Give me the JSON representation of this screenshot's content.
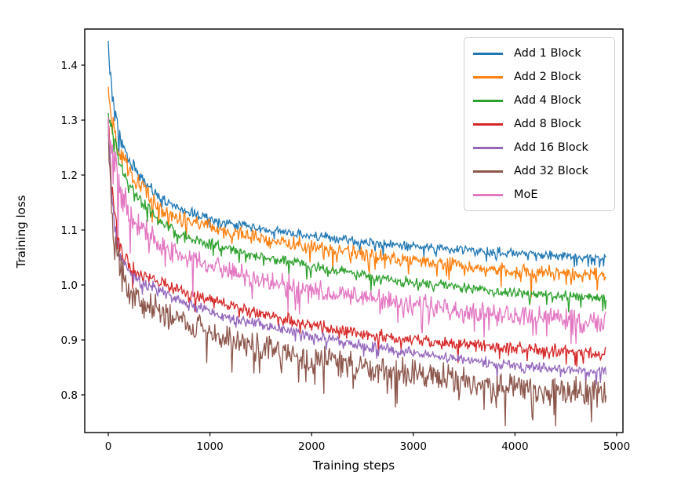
{
  "chart_data": {
    "type": "line",
    "title": "",
    "xlabel": "Training steps",
    "ylabel": "Training loss",
    "x_ticks": [
      0,
      1000,
      2000,
      3000,
      4000,
      5000
    ],
    "y_ticks": [
      0.8,
      0.9,
      1.0,
      1.1,
      1.2,
      1.3,
      1.4
    ],
    "xlim": [
      -231,
      5061
    ],
    "ylim": [
      0.731,
      1.466
    ],
    "x_data_range": [
      0,
      4900
    ],
    "grid": false,
    "legend_position": "upper-right",
    "axis_color": "#000000",
    "anchor_steps": [
      0,
      30,
      60,
      100,
      150,
      200,
      300,
      500,
      700,
      1000,
      1500,
      2000,
      2500,
      3000,
      3500,
      4000,
      4500,
      4900
    ],
    "series": [
      {
        "name": "Add 1 Block",
        "color": "#1f77b4",
        "noise": 0.01,
        "loss": [
          1.43,
          1.365,
          1.315,
          1.28,
          1.25,
          1.23,
          1.2,
          1.16,
          1.14,
          1.12,
          1.1,
          1.09,
          1.078,
          1.07,
          1.064,
          1.058,
          1.053,
          1.05
        ]
      },
      {
        "name": "Add 2 Block",
        "color": "#ff7f0e",
        "noise": 0.016,
        "loss": [
          1.34,
          1.305,
          1.28,
          1.255,
          1.232,
          1.215,
          1.185,
          1.14,
          1.12,
          1.105,
          1.085,
          1.07,
          1.056,
          1.045,
          1.034,
          1.025,
          1.02,
          1.018
        ]
      },
      {
        "name": "Add 4 Block",
        "color": "#2ca02c",
        "noise": 0.011,
        "loss": [
          1.31,
          1.28,
          1.255,
          1.23,
          1.205,
          1.185,
          1.155,
          1.115,
          1.095,
          1.075,
          1.052,
          1.035,
          1.018,
          1.005,
          0.995,
          0.985,
          0.98,
          0.975
        ]
      },
      {
        "name": "Add 8 Block",
        "color": "#d62728",
        "noise": 0.014,
        "loss": [
          1.29,
          1.19,
          1.13,
          1.08,
          1.05,
          1.04,
          1.02,
          1.005,
          0.99,
          0.972,
          0.948,
          0.927,
          0.912,
          0.9,
          0.892,
          0.885,
          0.879,
          0.875
        ]
      },
      {
        "name": "Add 16 Block",
        "color": "#9467bd",
        "noise": 0.012,
        "loss": [
          1.28,
          1.17,
          1.11,
          1.065,
          1.04,
          1.025,
          1.005,
          0.99,
          0.973,
          0.95,
          0.928,
          0.906,
          0.89,
          0.876,
          0.864,
          0.852,
          0.846,
          0.843
        ]
      },
      {
        "name": "Add 32 Block",
        "color": "#8c564b",
        "noise": 0.03,
        "loss": [
          1.3,
          1.15,
          1.09,
          1.04,
          1.01,
          0.995,
          0.975,
          0.955,
          0.937,
          0.912,
          0.888,
          0.865,
          0.85,
          0.838,
          0.826,
          0.816,
          0.808,
          0.803
        ]
      },
      {
        "name": "MoE",
        "color": "#e377c2",
        "noise": 0.024,
        "loss": [
          1.31,
          1.26,
          1.225,
          1.19,
          1.16,
          1.14,
          1.11,
          1.075,
          1.055,
          1.035,
          1.01,
          0.99,
          0.976,
          0.965,
          0.954,
          0.945,
          0.937,
          0.932
        ]
      }
    ]
  }
}
